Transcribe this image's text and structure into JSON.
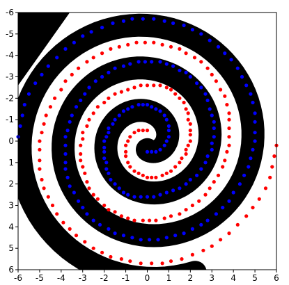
{
  "chart_data": {
    "type": "scatter",
    "title": "",
    "xlabel": "",
    "ylabel": "",
    "xlim": [
      -6,
      6
    ],
    "ylim": [
      6,
      -6
    ],
    "y_axis_inverted": true,
    "x_ticks": [
      -6,
      -5,
      -4,
      -3,
      -2,
      -1,
      0,
      1,
      2,
      3,
      4,
      5,
      6
    ],
    "y_ticks": [
      -6,
      -5,
      -4,
      -3,
      -2,
      -1,
      0,
      1,
      2,
      3,
      4,
      5,
      6
    ],
    "background": "decision-region map: two interleaved spiral bands (class colours black and white)",
    "region_colors": [
      "#000000",
      "#ffffff"
    ],
    "series": [
      {
        "color": "#0000ff",
        "spiral_angle_start_deg": 0,
        "points": [
          [
            0.0,
            0.5
          ],
          [
            0.2,
            0.5
          ],
          [
            0.4,
            0.5
          ],
          [
            0.6,
            0.4
          ],
          [
            0.8,
            0.2
          ],
          [
            0.9,
            0.0
          ],
          [
            1.0,
            -0.2
          ],
          [
            1.0,
            -0.5
          ],
          [
            1.0,
            -0.7
          ],
          [
            0.9,
            -1.0
          ],
          [
            0.8,
            -1.2
          ],
          [
            0.6,
            -1.4
          ],
          [
            0.4,
            -1.5
          ],
          [
            0.2,
            -1.6
          ],
          [
            0.0,
            -1.7
          ],
          [
            -0.2,
            -1.7
          ],
          [
            -0.4,
            -1.7
          ],
          [
            -0.7,
            -1.6
          ],
          [
            -0.9,
            -1.5
          ],
          [
            -1.1,
            -1.4
          ],
          [
            -1.3,
            -1.2
          ],
          [
            -1.5,
            -1.0
          ],
          [
            -1.6,
            -0.8
          ],
          [
            -1.8,
            -0.6
          ],
          [
            -1.8,
            -0.4
          ],
          [
            -1.9,
            -0.2
          ],
          [
            -2.0,
            0.0
          ],
          [
            -2.0,
            0.3
          ],
          [
            -2.0,
            0.5
          ],
          [
            -2.0,
            0.8
          ],
          [
            -1.9,
            1.0
          ],
          [
            -1.9,
            1.3
          ],
          [
            -1.8,
            1.5
          ],
          [
            -1.7,
            1.8
          ],
          [
            -1.5,
            2.0
          ],
          [
            -1.3,
            2.2
          ],
          [
            -1.1,
            2.4
          ],
          [
            -0.9,
            2.5
          ],
          [
            -0.6,
            2.6
          ],
          [
            -0.3,
            2.6
          ],
          [
            0.0,
            2.6
          ],
          [
            0.3,
            2.6
          ],
          [
            0.6,
            2.5
          ],
          [
            0.9,
            2.4
          ],
          [
            1.2,
            2.3
          ],
          [
            1.5,
            2.2
          ],
          [
            1.8,
            2.0
          ],
          [
            2.0,
            1.8
          ],
          [
            2.3,
            1.6
          ],
          [
            2.5,
            1.3
          ],
          [
            2.7,
            1.0
          ],
          [
            2.8,
            0.7
          ],
          [
            3.0,
            0.4
          ],
          [
            3.0,
            0.1
          ],
          [
            3.1,
            -0.2
          ],
          [
            3.1,
            -0.6
          ],
          [
            3.1,
            -0.9
          ],
          [
            3.0,
            -1.2
          ],
          [
            2.9,
            -1.5
          ],
          [
            2.8,
            -1.9
          ],
          [
            2.7,
            -2.2
          ],
          [
            2.5,
            -2.5
          ],
          [
            2.3,
            -2.7
          ],
          [
            2.0,
            -3.0
          ],
          [
            1.8,
            -3.2
          ],
          [
            1.5,
            -3.3
          ],
          [
            1.2,
            -3.5
          ],
          [
            0.9,
            -3.6
          ],
          [
            0.6,
            -3.7
          ],
          [
            0.2,
            -3.7
          ],
          [
            -0.1,
            -3.7
          ],
          [
            -0.4,
            -3.7
          ],
          [
            -0.8,
            -3.6
          ],
          [
            -1.1,
            -3.5
          ],
          [
            -1.5,
            -3.4
          ],
          [
            -1.8,
            -3.2
          ],
          [
            -2.1,
            -3.0
          ],
          [
            -2.4,
            -2.8
          ],
          [
            -2.7,
            -2.5
          ],
          [
            -2.9,
            -2.2
          ],
          [
            -3.1,
            -1.9
          ],
          [
            -3.3,
            -1.6
          ],
          [
            -3.5,
            -1.2
          ],
          [
            -3.6,
            -0.9
          ],
          [
            -3.7,
            -0.5
          ],
          [
            -3.8,
            -0.2
          ],
          [
            -3.8,
            0.2
          ],
          [
            -3.8,
            0.6
          ],
          [
            -3.8,
            1.0
          ],
          [
            -3.8,
            1.3
          ],
          [
            -3.7,
            1.7
          ],
          [
            -3.6,
            2.1
          ],
          [
            -3.4,
            2.4
          ],
          [
            -3.2,
            2.8
          ],
          [
            -3.0,
            3.1
          ],
          [
            -2.8,
            3.4
          ],
          [
            -2.5,
            3.7
          ],
          [
            -2.2,
            3.9
          ],
          [
            -1.8,
            4.1
          ],
          [
            -1.5,
            4.3
          ],
          [
            -1.1,
            4.4
          ],
          [
            -0.7,
            4.5
          ],
          [
            -0.3,
            4.6
          ],
          [
            0.1,
            4.6
          ],
          [
            0.5,
            4.6
          ],
          [
            0.9,
            4.5
          ],
          [
            1.3,
            4.4
          ],
          [
            1.7,
            4.3
          ],
          [
            2.1,
            4.1
          ],
          [
            2.5,
            3.9
          ],
          [
            2.8,
            3.7
          ],
          [
            3.2,
            3.4
          ],
          [
            3.5,
            3.1
          ],
          [
            3.8,
            2.8
          ],
          [
            4.0,
            2.4
          ],
          [
            4.3,
            2.0
          ],
          [
            4.5,
            1.6
          ],
          [
            4.7,
            1.2
          ],
          [
            4.8,
            0.8
          ],
          [
            4.9,
            0.4
          ],
          [
            5.0,
            0.0
          ],
          [
            5.0,
            -0.4
          ],
          [
            5.0,
            -0.9
          ],
          [
            5.0,
            -1.3
          ],
          [
            4.9,
            -1.8
          ],
          [
            4.8,
            -2.2
          ],
          [
            4.6,
            -2.6
          ],
          [
            4.4,
            -3.0
          ],
          [
            4.2,
            -3.4
          ],
          [
            3.9,
            -3.8
          ],
          [
            3.6,
            -4.1
          ],
          [
            3.3,
            -4.4
          ],
          [
            2.9,
            -4.7
          ],
          [
            2.5,
            -5.0
          ],
          [
            2.1,
            -5.2
          ],
          [
            1.7,
            -5.4
          ],
          [
            1.2,
            -5.5
          ],
          [
            0.8,
            -5.6
          ],
          [
            0.3,
            -5.7
          ],
          [
            -0.2,
            -5.7
          ],
          [
            -0.7,
            -5.7
          ],
          [
            -1.1,
            -5.6
          ],
          [
            -1.6,
            -5.5
          ],
          [
            -2.1,
            -5.3
          ],
          [
            -2.6,
            -5.1
          ],
          [
            -3.0,
            -4.9
          ],
          [
            -3.4,
            -4.6
          ],
          [
            -3.8,
            -4.3
          ],
          [
            -4.2,
            -3.9
          ],
          [
            -4.6,
            -3.5
          ],
          [
            -4.9,
            -3.1
          ],
          [
            -5.2,
            -2.7
          ],
          [
            -5.5,
            -2.2
          ],
          [
            -5.7,
            -1.7
          ],
          [
            -5.8,
            -1.2
          ],
          [
            -5.9,
            -0.7
          ],
          [
            -6.0,
            -0.2
          ]
        ]
      },
      {
        "color": "#ff0000",
        "spiral_angle_start_deg": 180,
        "points": [
          [
            0.0,
            -0.5
          ],
          [
            -0.2,
            -0.5
          ],
          [
            -0.4,
            -0.5
          ],
          [
            -0.6,
            -0.4
          ],
          [
            -0.8,
            -0.2
          ],
          [
            -0.9,
            0.0
          ],
          [
            -1.0,
            0.2
          ],
          [
            -1.0,
            0.5
          ],
          [
            -1.0,
            0.7
          ],
          [
            -0.9,
            1.0
          ],
          [
            -0.8,
            1.2
          ],
          [
            -0.6,
            1.4
          ],
          [
            -0.4,
            1.5
          ],
          [
            -0.2,
            1.6
          ],
          [
            0.0,
            1.7
          ],
          [
            0.2,
            1.7
          ],
          [
            0.4,
            1.7
          ],
          [
            0.7,
            1.6
          ],
          [
            0.9,
            1.5
          ],
          [
            1.1,
            1.4
          ],
          [
            1.3,
            1.2
          ],
          [
            1.5,
            1.0
          ],
          [
            1.6,
            0.8
          ],
          [
            1.8,
            0.6
          ],
          [
            1.8,
            0.4
          ],
          [
            1.9,
            0.2
          ],
          [
            2.0,
            0.0
          ],
          [
            2.0,
            -0.3
          ],
          [
            2.0,
            -0.5
          ],
          [
            2.0,
            -0.8
          ],
          [
            1.9,
            -1.0
          ],
          [
            1.9,
            -1.3
          ],
          [
            1.8,
            -1.5
          ],
          [
            1.7,
            -1.8
          ],
          [
            1.5,
            -2.0
          ],
          [
            1.3,
            -2.2
          ],
          [
            1.1,
            -2.4
          ],
          [
            0.9,
            -2.5
          ],
          [
            0.6,
            -2.6
          ],
          [
            0.3,
            -2.6
          ],
          [
            0.0,
            -2.6
          ],
          [
            -0.3,
            -2.6
          ],
          [
            -0.6,
            -2.5
          ],
          [
            -0.9,
            -2.4
          ],
          [
            -1.2,
            -2.3
          ],
          [
            -1.5,
            -2.2
          ],
          [
            -1.8,
            -2.0
          ],
          [
            -2.0,
            -1.8
          ],
          [
            -2.3,
            -1.6
          ],
          [
            -2.5,
            -1.3
          ],
          [
            -2.7,
            -1.0
          ],
          [
            -2.8,
            -0.7
          ],
          [
            -3.0,
            -0.4
          ],
          [
            -3.0,
            -0.1
          ],
          [
            -3.1,
            0.2
          ],
          [
            -3.1,
            0.6
          ],
          [
            -3.1,
            0.9
          ],
          [
            -3.0,
            1.2
          ],
          [
            -2.9,
            1.5
          ],
          [
            -2.8,
            1.9
          ],
          [
            -2.7,
            2.2
          ],
          [
            -2.5,
            2.5
          ],
          [
            -2.3,
            2.7
          ],
          [
            -2.0,
            3.0
          ],
          [
            -1.8,
            3.2
          ],
          [
            -1.5,
            3.3
          ],
          [
            -1.2,
            3.5
          ],
          [
            -0.9,
            3.6
          ],
          [
            -0.6,
            3.7
          ],
          [
            -0.2,
            3.7
          ],
          [
            0.1,
            3.7
          ],
          [
            0.4,
            3.7
          ],
          [
            0.8,
            3.6
          ],
          [
            1.1,
            3.5
          ],
          [
            1.5,
            3.4
          ],
          [
            1.8,
            3.2
          ],
          [
            2.1,
            3.0
          ],
          [
            2.4,
            2.8
          ],
          [
            2.7,
            2.5
          ],
          [
            2.9,
            2.2
          ],
          [
            3.1,
            1.9
          ],
          [
            3.3,
            1.6
          ],
          [
            3.5,
            1.2
          ],
          [
            3.6,
            0.9
          ],
          [
            3.7,
            0.5
          ],
          [
            3.8,
            0.2
          ],
          [
            3.8,
            -0.2
          ],
          [
            3.8,
            -0.6
          ],
          [
            3.8,
            -1.0
          ],
          [
            3.8,
            -1.3
          ],
          [
            3.7,
            -1.7
          ],
          [
            3.6,
            -2.1
          ],
          [
            3.4,
            -2.4
          ],
          [
            3.2,
            -2.8
          ],
          [
            3.0,
            -3.1
          ],
          [
            2.8,
            -3.4
          ],
          [
            2.5,
            -3.7
          ],
          [
            2.2,
            -3.9
          ],
          [
            1.8,
            -4.1
          ],
          [
            1.5,
            -4.3
          ],
          [
            1.1,
            -4.4
          ],
          [
            0.7,
            -4.5
          ],
          [
            0.3,
            -4.6
          ],
          [
            -0.1,
            -4.6
          ],
          [
            -0.5,
            -4.6
          ],
          [
            -0.9,
            -4.5
          ],
          [
            -1.3,
            -4.4
          ],
          [
            -1.7,
            -4.3
          ],
          [
            -2.1,
            -4.1
          ],
          [
            -2.5,
            -3.9
          ],
          [
            -2.8,
            -3.7
          ],
          [
            -3.2,
            -3.4
          ],
          [
            -3.5,
            -3.1
          ],
          [
            -3.8,
            -2.8
          ],
          [
            -4.0,
            -2.4
          ],
          [
            -4.3,
            -2.0
          ],
          [
            -4.5,
            -1.6
          ],
          [
            -4.7,
            -1.2
          ],
          [
            -4.8,
            -0.8
          ],
          [
            -4.9,
            -0.4
          ],
          [
            -5.0,
            0.0
          ],
          [
            -5.0,
            0.4
          ],
          [
            -5.0,
            0.9
          ],
          [
            -5.0,
            1.3
          ],
          [
            -4.9,
            1.8
          ],
          [
            -4.8,
            2.2
          ],
          [
            -4.6,
            2.6
          ],
          [
            -4.4,
            3.0
          ],
          [
            -4.2,
            3.4
          ],
          [
            -3.9,
            3.8
          ],
          [
            -3.6,
            4.1
          ],
          [
            -3.3,
            4.4
          ],
          [
            -2.9,
            4.7
          ],
          [
            -2.5,
            5.0
          ],
          [
            -2.1,
            5.2
          ],
          [
            -1.7,
            5.4
          ],
          [
            -1.2,
            5.5
          ],
          [
            -0.8,
            5.6
          ],
          [
            -0.3,
            5.7
          ],
          [
            0.2,
            5.7
          ],
          [
            0.7,
            5.7
          ],
          [
            1.1,
            5.6
          ],
          [
            1.6,
            5.5
          ],
          [
            2.1,
            5.3
          ],
          [
            2.6,
            5.1
          ],
          [
            3.0,
            4.9
          ],
          [
            3.4,
            4.6
          ],
          [
            3.8,
            4.3
          ],
          [
            4.2,
            3.9
          ],
          [
            4.6,
            3.5
          ],
          [
            4.9,
            3.1
          ],
          [
            5.2,
            2.7
          ],
          [
            5.5,
            2.2
          ],
          [
            5.7,
            1.7
          ],
          [
            5.8,
            1.2
          ],
          [
            5.9,
            0.7
          ],
          [
            6.0,
            0.2
          ]
        ]
      }
    ]
  }
}
